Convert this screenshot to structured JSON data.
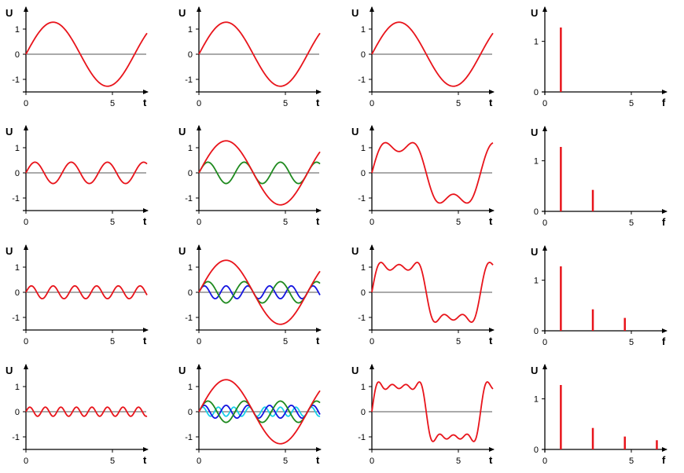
{
  "figure": {
    "time_axis_label": "t",
    "freq_axis_label": "f",
    "value_axis_label": "U",
    "time_x_ticks": [
      "0",
      "5"
    ],
    "freq_x_ticks": [
      "0",
      "5"
    ],
    "time_y_ticks": [
      "1",
      "0",
      "-1"
    ],
    "freq_y_ticks": [
      "1",
      "0"
    ]
  },
  "chart_data": {
    "type": "line",
    "description_free": true,
    "x_range": [
      0,
      7
    ],
    "y_range": [
      -1.5,
      1.5
    ],
    "amplitude": 1.2732,
    "rows": [
      {
        "harmonic_panel": {
          "harmonic": 1,
          "amplitude": 1.2732
        },
        "components": [
          1
        ],
        "spectrum": [
          {
            "f": 1,
            "amplitude": 1.2732
          }
        ]
      },
      {
        "harmonic_panel": {
          "harmonic": 3,
          "amplitude": 0.4244
        },
        "components": [
          1,
          3
        ],
        "spectrum": [
          {
            "f": 1,
            "amplitude": 1.2732
          },
          {
            "f": 3,
            "amplitude": 0.4244
          }
        ]
      },
      {
        "harmonic_panel": {
          "harmonic": 5,
          "amplitude": 0.2546
        },
        "components": [
          1,
          3,
          5
        ],
        "spectrum": [
          {
            "f": 1,
            "amplitude": 1.2732
          },
          {
            "f": 3,
            "amplitude": 0.4244
          },
          {
            "f": 5,
            "amplitude": 0.2546
          }
        ]
      },
      {
        "harmonic_panel": {
          "harmonic": 7,
          "amplitude": 0.1819
        },
        "components": [
          1,
          3,
          5,
          7
        ],
        "spectrum": [
          {
            "f": 1,
            "amplitude": 1.2732
          },
          {
            "f": 3,
            "amplitude": 0.4244
          },
          {
            "f": 5,
            "amplitude": 0.2546
          },
          {
            "f": 7,
            "amplitude": 0.1819
          }
        ]
      }
    ],
    "colors": {
      "1": "#e8141b",
      "3": "#1f8a1f",
      "5": "#1515e0",
      "7": "#19d0e8",
      "sum": "#e8141b",
      "spectrum": "#e8141b",
      "axis": "#000000",
      "zero_line": "#555555"
    }
  }
}
